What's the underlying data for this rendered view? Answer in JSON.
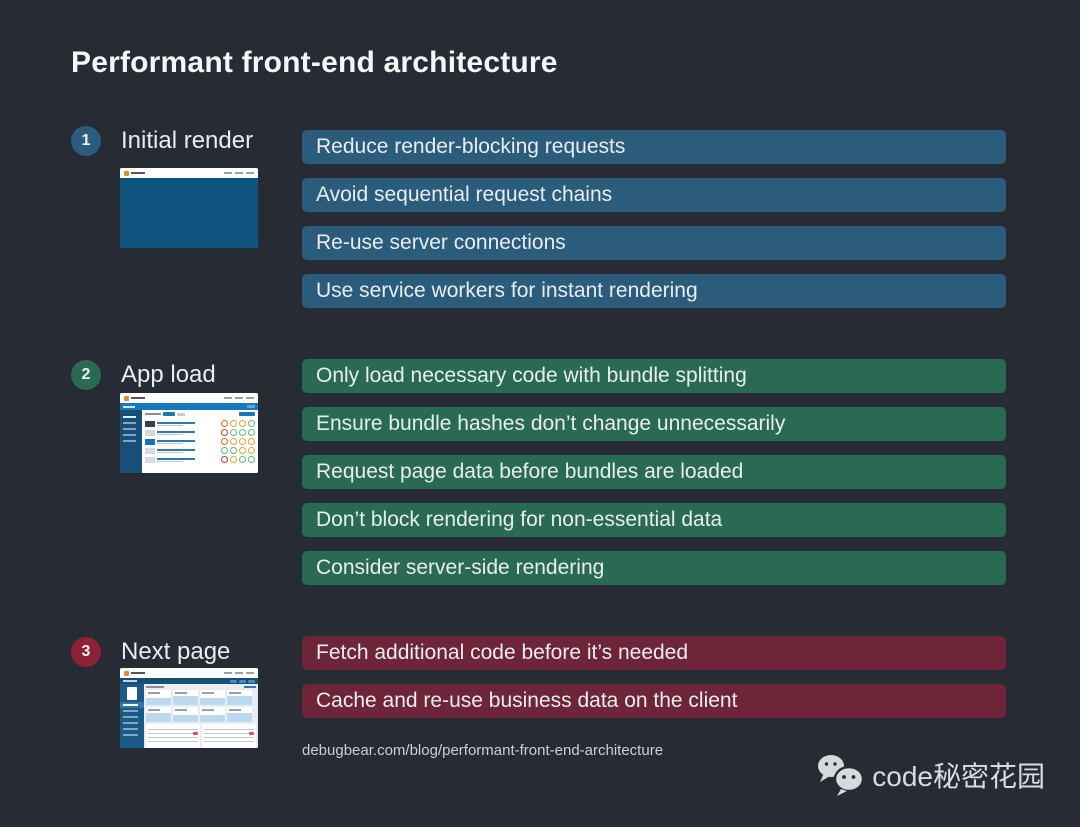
{
  "page": {
    "title": "Performant front-end architecture",
    "footer_url": "debugbear.com/blog/performant-front-end-architecture",
    "watermark_text": "code秘密花园",
    "background_color": "#262B34"
  },
  "sections": [
    {
      "number": "1",
      "label": "Initial render",
      "bar_color": "#2B5C7B",
      "badge_color": "#2B5C7B",
      "items": [
        "Reduce render-blocking requests",
        "Avoid sequential request chains",
        "Re-use server connections",
        "Use service workers for instant rendering"
      ]
    },
    {
      "number": "2",
      "label": "App load",
      "bar_color": "#2A6A53",
      "badge_color": "#2A6A53",
      "items": [
        "Only load necessary code with bundle splitting",
        "Ensure bundle hashes don’t change unnecessarily",
        "Request page data before bundles are loaded",
        "Don’t block rendering for non-essential data",
        "Consider server-side rendering"
      ]
    },
    {
      "number": "3",
      "label": "Next page",
      "bar_color": "#6E2439",
      "badge_color": "#8C2137",
      "items": [
        "Fetch additional code before it’s needed",
        "Cache and re-use business data on the client"
      ]
    }
  ]
}
